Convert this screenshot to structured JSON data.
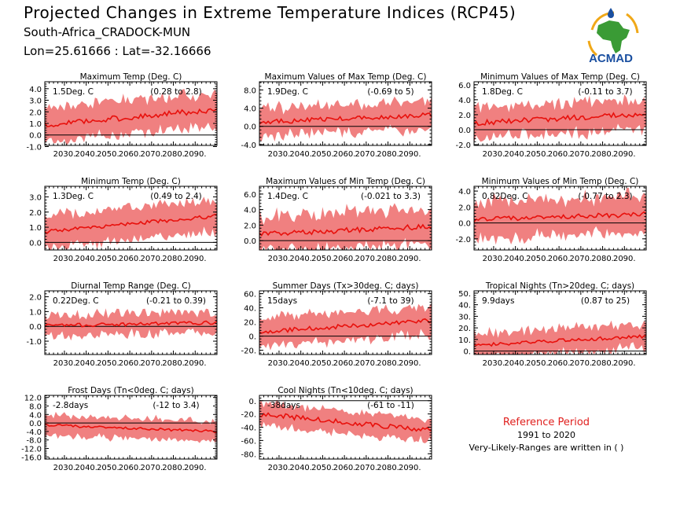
{
  "header": {
    "title": "Projected Changes in Extreme Temperature Indices (RCP45)",
    "location": "South-Africa_CRADOCK-MUN",
    "coords": "Lon=25.61666 : Lat=-32.16666"
  },
  "logo": {
    "text": "ACMAD"
  },
  "reference": {
    "title": "Reference Period",
    "years": "1991 to 2020",
    "note": "Very-Likely-Ranges are written in ( )"
  },
  "colors": {
    "band": "#f08080",
    "line": "#e8100c",
    "zero": "#000000",
    "logo_text": "#1a4fa0",
    "logo_green": "#3a9b35",
    "logo_gold": "#f0a818"
  },
  "chart_data": [
    {
      "type": "area",
      "title": "Maximum Temp (Deg. C)",
      "summary": "1.5Deg. C",
      "range": "(0.28 to 2.8)",
      "x_start": 2021,
      "x_end": 2100,
      "xticks": [
        "2030.",
        "2040.",
        "2050.",
        "2060.",
        "2070.",
        "2080.",
        "2090."
      ],
      "ylim": [
        -0.9,
        4.6
      ],
      "yticks": [
        "-1.0",
        "0.0",
        "1.0",
        "2.0",
        "3.0",
        "4.0"
      ],
      "ytick_values": [
        -1,
        0,
        1,
        2,
        3,
        4
      ],
      "trend_start": 0.9,
      "trend_end": 2.2,
      "band": 1.3,
      "line_noise": 0.25,
      "band_noise": 0.6
    },
    {
      "type": "area",
      "title": "Maximum Values of Max Temp (Deg. C)",
      "summary": "1.9Deg. C",
      "range": "(-0.69 to 5)",
      "x_start": 2021,
      "x_end": 2100,
      "xticks": [
        "2030.",
        "2040.",
        "2050.",
        "2060.",
        "2070.",
        "2080.",
        "2090."
      ],
      "ylim": [
        -4.2,
        9.8
      ],
      "yticks": [
        "-4.0",
        "0.0",
        "4.0",
        "8.0"
      ],
      "ytick_values": [
        -4,
        0,
        4,
        8
      ],
      "trend_start": 0.9,
      "trend_end": 2.5,
      "band": 2.4,
      "line_noise": 0.5,
      "band_noise": 1.8
    },
    {
      "type": "area",
      "title": "Minimum Values of Max Temp (Deg. C)",
      "summary": "1.8Deg. C",
      "range": "(-0.11 to 3.7)",
      "x_start": 2021,
      "x_end": 2100,
      "xticks": [
        "2030.",
        "2040.",
        "2050.",
        "2060.",
        "2070.",
        "2080.",
        "2090."
      ],
      "ylim": [
        -2.1,
        6.4
      ],
      "yticks": [
        "-2.0",
        "0.0",
        "2.0",
        "4.0",
        "6.0"
      ],
      "ytick_values": [
        -2,
        0,
        2,
        4,
        6
      ],
      "trend_start": 0.9,
      "trend_end": 2.1,
      "band": 1.6,
      "line_noise": 0.35,
      "band_noise": 1.2
    },
    {
      "type": "area",
      "title": "Minimum Temp (Deg. C)",
      "summary": "1.3Deg. C",
      "range": "(0.49 to 2.4)",
      "x_start": 2021,
      "x_end": 2100,
      "xticks": [
        "2030.",
        "2040.",
        "2050.",
        "2060.",
        "2070.",
        "2080.",
        "2090."
      ],
      "ylim": [
        -0.5,
        3.7
      ],
      "yticks": [
        "0.0",
        "1.0",
        "2.0",
        "3.0"
      ],
      "ytick_values": [
        0,
        1,
        2,
        3
      ],
      "trend_start": 0.7,
      "trend_end": 1.75,
      "band": 1.0,
      "line_noise": 0.12,
      "band_noise": 0.35
    },
    {
      "type": "area",
      "title": "Maximum Values of Min Temp (Deg. C)",
      "summary": "1.4Deg. C",
      "range": "(-0.021 to 3.3)",
      "x_start": 2021,
      "x_end": 2100,
      "xticks": [
        "2030.",
        "2040.",
        "2050.",
        "2060.",
        "2070.",
        "2080.",
        "2090."
      ],
      "ylim": [
        -1.2,
        7.0
      ],
      "yticks": [
        "0.0",
        "2.0",
        "4.0",
        "6.0"
      ],
      "ytick_values": [
        0,
        2,
        4,
        6
      ],
      "trend_start": 0.8,
      "trend_end": 1.8,
      "band": 1.8,
      "line_noise": 0.35,
      "band_noise": 1.4
    },
    {
      "type": "area",
      "title": "Minimum Values of Min Temp (Deg. C)",
      "summary": "0.82Deg. C",
      "range": "(-0.77 to 2.3)",
      "x_start": 2021,
      "x_end": 2100,
      "xticks": [
        "2030.",
        "2040.",
        "2050.",
        "2060.",
        "2070.",
        "2080.",
        "2090."
      ],
      "ylim": [
        -3.4,
        4.6
      ],
      "yticks": [
        "-2.0",
        "0.0",
        "2.0",
        "4.0"
      ],
      "ytick_values": [
        -2,
        0,
        2,
        4
      ],
      "trend_start": 0.4,
      "trend_end": 1.1,
      "band": 1.9,
      "line_noise": 0.3,
      "band_noise": 1.3
    },
    {
      "type": "area",
      "title": "Diurnal Temp Range (Deg. C)",
      "summary": "0.22Deg. C",
      "range": "(-0.21 to 0.39)",
      "x_start": 2021,
      "x_end": 2100,
      "xticks": [
        "2030.",
        "2040.",
        "2050.",
        "2060.",
        "2070.",
        "2080.",
        "2090."
      ],
      "ylim": [
        -1.9,
        2.4
      ],
      "yticks": [
        "-1.0",
        "0.0",
        "1.0",
        "2.0"
      ],
      "ytick_values": [
        -1,
        0,
        1,
        2
      ],
      "trend_start": 0.05,
      "trend_end": 0.25,
      "band": 0.45,
      "line_noise": 0.12,
      "band_noise": 0.6
    },
    {
      "type": "area",
      "title": "Summer Days (Tx>30deg. C; days)",
      "summary": "15days",
      "range": "(-7.1 to 39)",
      "x_start": 2021,
      "x_end": 2100,
      "xticks": [
        "2030.",
        "2040.",
        "2050.",
        "2060.",
        "2070.",
        "2080.",
        "2090."
      ],
      "ylim": [
        -26,
        64
      ],
      "yticks": [
        "-20.",
        "0.",
        "20.",
        "40.",
        "60."
      ],
      "ytick_values": [
        -20,
        0,
        20,
        40,
        60
      ],
      "trend_start": 6,
      "trend_end": 22,
      "band": 17,
      "line_noise": 3,
      "band_noise": 10
    },
    {
      "type": "area",
      "title": "Tropical Nights (Tn>20deg. C; days)",
      "summary": "9.9days",
      "range": "(0.87 to 25)",
      "x_start": 2021,
      "x_end": 2100,
      "xticks": [
        "2030.",
        "2040.",
        "2050.",
        "2060.",
        "2070.",
        "2080.",
        "2090."
      ],
      "ylim": [
        -3,
        52
      ],
      "yticks": [
        "0.",
        "10.",
        "20.",
        "30.",
        "40.",
        "50."
      ],
      "ytick_values": [
        0,
        10,
        20,
        30,
        40,
        50
      ],
      "trend_start": 5,
      "trend_end": 13,
      "band": 7,
      "line_noise": 1.5,
      "band_noise": 8
    },
    {
      "type": "area",
      "title": "Frost Days (Tn<0deg. C; days)",
      "summary": "-2.8days",
      "range": "(-12 to 3.4)",
      "x_start": 2021,
      "x_end": 2100,
      "xticks": [
        "2030.",
        "2040.",
        "2050.",
        "2060.",
        "2070.",
        "2080.",
        "2090."
      ],
      "ylim": [
        -17,
        13
      ],
      "yticks": [
        "-16.0",
        "-12.0",
        "-8.0",
        "-4.0",
        "0.0",
        "4.0",
        "8.0",
        "12.0"
      ],
      "ytick_values": [
        -16,
        -12,
        -8,
        -4,
        0,
        4,
        8,
        12
      ],
      "trend_start": -1,
      "trend_end": -4,
      "band": 4.5,
      "line_noise": 0.6,
      "band_noise": 1.5
    },
    {
      "type": "area",
      "title": "Cool Nights (Tn<10deg. C; days)",
      "summary": "-38days",
      "range": "(-61 to -11)",
      "x_start": 2021,
      "x_end": 2100,
      "xticks": [
        "2030.",
        "2040.",
        "2050.",
        "2060.",
        "2070.",
        "2080.",
        "2090."
      ],
      "ylim": [
        -88,
        8
      ],
      "yticks": [
        "-80.",
        "-60.",
        "-40.",
        "-20.",
        "0."
      ],
      "ytick_values": [
        -80,
        -60,
        -40,
        -20,
        0
      ],
      "trend_start": -20,
      "trend_end": -45,
      "band": 14,
      "line_noise": 4,
      "band_noise": 8
    }
  ]
}
